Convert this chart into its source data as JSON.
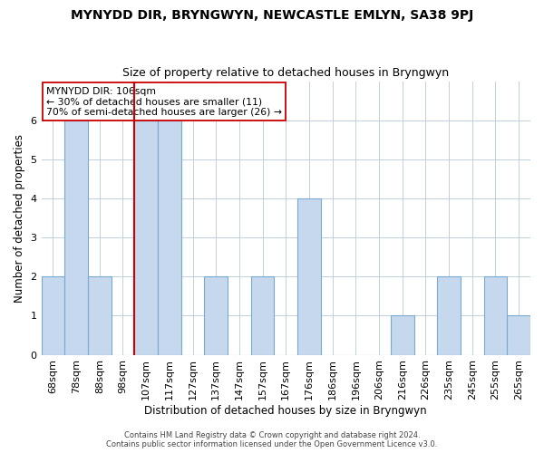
{
  "title": "MYNYDD DIR, BRYNGWYN, NEWCASTLE EMLYN, SA38 9PJ",
  "subtitle": "Size of property relative to detached houses in Bryngwyn",
  "xlabel": "Distribution of detached houses by size in Bryngwyn",
  "ylabel": "Number of detached properties",
  "bar_labels": [
    "68sqm",
    "78sqm",
    "88sqm",
    "98sqm",
    "107sqm",
    "117sqm",
    "127sqm",
    "137sqm",
    "147sqm",
    "157sqm",
    "167sqm",
    "176sqm",
    "186sqm",
    "196sqm",
    "206sqm",
    "216sqm",
    "226sqm",
    "235sqm",
    "245sqm",
    "255sqm",
    "265sqm"
  ],
  "bar_values": [
    2,
    6,
    2,
    0,
    6,
    6,
    0,
    2,
    0,
    2,
    0,
    4,
    0,
    0,
    0,
    1,
    0,
    2,
    0,
    2,
    1
  ],
  "bar_color": "#c5d8ee",
  "bar_edge_color": "#7aaad0",
  "subject_line_index": 4,
  "subject_line_color": "#cc0000",
  "annotation_title": "MYNYDD DIR: 106sqm",
  "annotation_line1": "← 30% of detached houses are smaller (11)",
  "annotation_line2": "70% of semi-detached houses are larger (26) →",
  "annotation_box_edge": "#cc0000",
  "ylim": [
    0,
    7
  ],
  "yticks": [
    0,
    1,
    2,
    3,
    4,
    5,
    6
  ],
  "footnote1": "Contains HM Land Registry data © Crown copyright and database right 2024.",
  "footnote2": "Contains public sector information licensed under the Open Government Licence v3.0."
}
